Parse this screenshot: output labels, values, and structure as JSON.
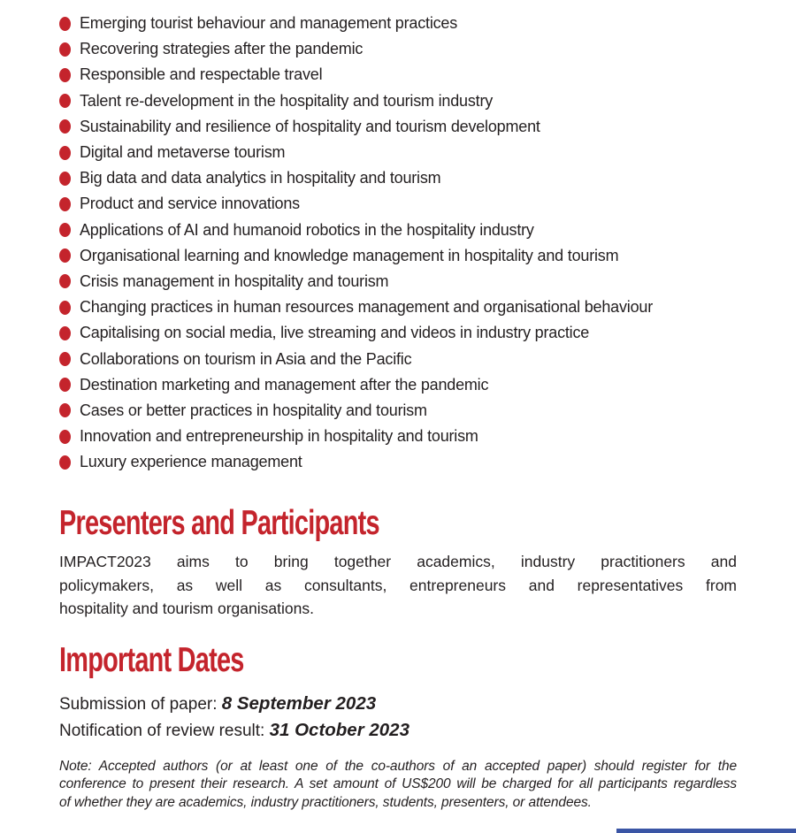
{
  "page": {
    "accent_red": "#c4242c",
    "accent_blue": "#3a55a5",
    "text_color": "#231f20"
  },
  "topics": {
    "items": [
      "Emerging tourist behaviour and management practices",
      "Recovering strategies after the pandemic",
      "Responsible and respectable travel",
      "Talent re-development in the hospitality and tourism industry",
      "Sustainability and resilience of hospitality and tourism development",
      "Digital and metaverse tourism",
      "Big data and data analytics in hospitality and tourism",
      "Product and service innovations",
      "Applications of AI and humanoid robotics in the hospitality industry",
      "Organisational learning and knowledge management in hospitality and tourism",
      "Crisis management in hospitality and tourism",
      "Changing practices in human resources management and organisational behaviour",
      "Capitalising on social media, live streaming and videos in industry practice",
      "Collaborations on tourism in Asia and the Pacific",
      "Destination marketing and management after the pandemic",
      "Cases or better practices in hospitality and tourism",
      "Innovation and entrepreneurship in hospitality and tourism",
      "Luxury experience management"
    ]
  },
  "presenters": {
    "heading": "Presenters and Participants",
    "body_lines": [
      "IMPACT2023 aims to bring together academics, industry practitioners and",
      "policymakers, as well as consultants, entrepreneurs and representatives from",
      "hospitality and tourism organisations."
    ]
  },
  "important_dates": {
    "heading": "Important Dates",
    "items": [
      {
        "label": "Submission of paper: ",
        "value": "8 September 2023"
      },
      {
        "label": "Notification of review result: ",
        "value": "31 October 2023"
      }
    ]
  },
  "note": {
    "lines": [
      "Note: Accepted authors (or at least one of the co-authors of an accepted paper) should register for the",
      "conference to present their research. A set amount of US$200 will be charged for all participants regardless",
      "of whether they are academics, industry practitioners, students, presenters, or attendees."
    ]
  }
}
